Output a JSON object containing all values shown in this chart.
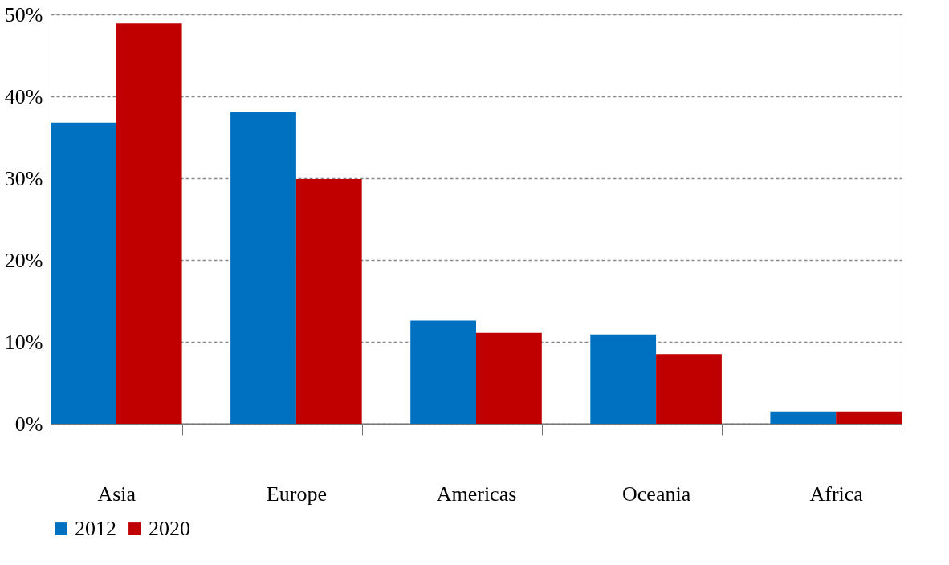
{
  "chart_data": {
    "type": "bar",
    "categories": [
      "Asia",
      "Europe",
      "Americas",
      "Oceania",
      "Africa"
    ],
    "series": [
      {
        "name": "2012",
        "color": "#0070c0",
        "values": [
          36.8,
          38.1,
          12.6,
          10.9,
          1.5
        ]
      },
      {
        "name": "2020",
        "color": "#c00000",
        "values": [
          48.9,
          29.9,
          11.1,
          8.5,
          1.5
        ]
      }
    ],
    "ylim": [
      0,
      50
    ],
    "yticks": [
      {
        "value": 0,
        "label": "0%"
      },
      {
        "value": 10,
        "label": "10%"
      },
      {
        "value": 20,
        "label": "20%"
      },
      {
        "value": 30,
        "label": "30%"
      },
      {
        "value": 40,
        "label": "40%"
      },
      {
        "value": 50,
        "label": "50%"
      }
    ],
    "grid": "y",
    "legend": "bottom"
  }
}
